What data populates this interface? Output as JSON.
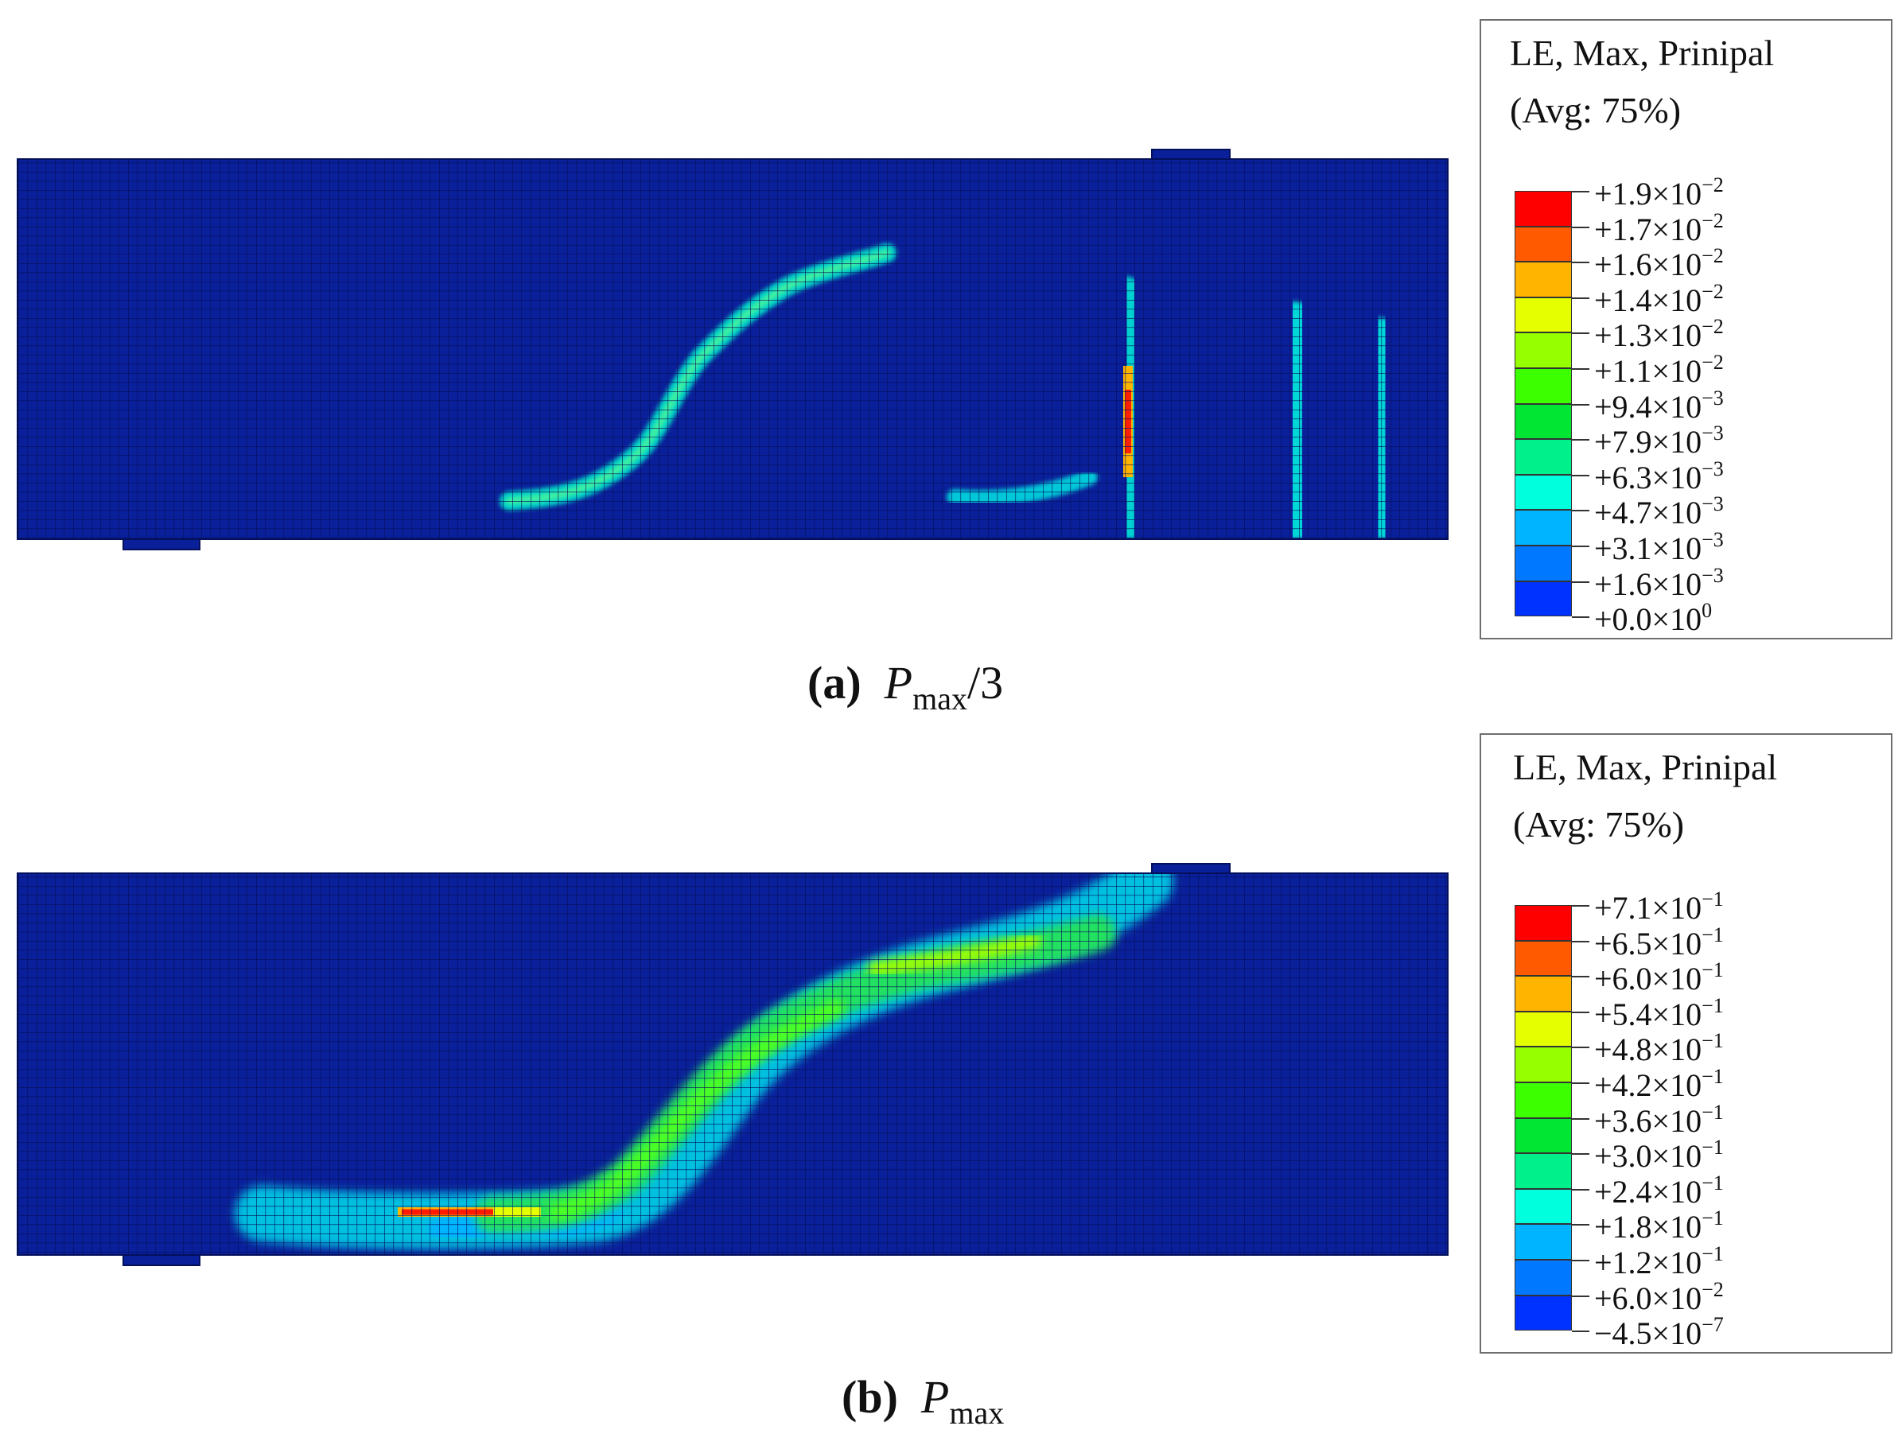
{
  "panels": [
    {
      "caption_letter": "(a)",
      "caption_p": "P",
      "caption_sub": "max",
      "caption_suffix": "/3",
      "legend": {
        "title_line1": "LE, Max, Prinipal",
        "title_line2": "(Avg: 75%)",
        "labels": [
          {
            "mant": "+1.9×10",
            "exp": "−2"
          },
          {
            "mant": "+1.7×10",
            "exp": "−2"
          },
          {
            "mant": "+1.6×10",
            "exp": "−2"
          },
          {
            "mant": "+1.4×10",
            "exp": "−2"
          },
          {
            "mant": "+1.3×10",
            "exp": "−2"
          },
          {
            "mant": "+1.1×10",
            "exp": "−2"
          },
          {
            "mant": "+9.4×10",
            "exp": "−3"
          },
          {
            "mant": "+7.9×10",
            "exp": "−3"
          },
          {
            "mant": "+6.3×10",
            "exp": "−3"
          },
          {
            "mant": "+4.7×10",
            "exp": "−3"
          },
          {
            "mant": "+3.1×10",
            "exp": "−3"
          },
          {
            "mant": "+1.6×10",
            "exp": "−3"
          },
          {
            "mant": "+0.0×10",
            "exp": "0"
          }
        ]
      }
    },
    {
      "caption_letter": "(b)",
      "caption_p": "P",
      "caption_sub": "max",
      "caption_suffix": "",
      "legend": {
        "title_line1": "LE, Max, Prinipal",
        "title_line2": "(Avg: 75%)",
        "labels": [
          {
            "mant": "+7.1×10",
            "exp": "−1"
          },
          {
            "mant": "+6.5×10",
            "exp": "−1"
          },
          {
            "mant": "+6.0×10",
            "exp": "−1"
          },
          {
            "mant": "+5.4×10",
            "exp": "−1"
          },
          {
            "mant": "+4.8×10",
            "exp": "−1"
          },
          {
            "mant": "+4.2×10",
            "exp": "−1"
          },
          {
            "mant": "+3.6×10",
            "exp": "−1"
          },
          {
            "mant": "+3.0×10",
            "exp": "−1"
          },
          {
            "mant": "+2.4×10",
            "exp": "−1"
          },
          {
            "mant": "+1.8×10",
            "exp": "−1"
          },
          {
            "mant": "+1.2×10",
            "exp": "−1"
          },
          {
            "mant": "+6.0×10",
            "exp": "−2"
          },
          {
            "mant": "−4.5×10",
            "exp": "−7"
          }
        ]
      }
    }
  ],
  "colors": {
    "mesh_background": "#0a1f9a",
    "mesh_grid": "#04105a",
    "contour_scale": [
      "#ff0000",
      "#ff5a00",
      "#ffb400",
      "#e6ff00",
      "#96ff00",
      "#3cff00",
      "#00e632",
      "#00f08c",
      "#00ffdc",
      "#00b4ff",
      "#0078ff",
      "#0032ff",
      "#0000ff"
    ]
  }
}
